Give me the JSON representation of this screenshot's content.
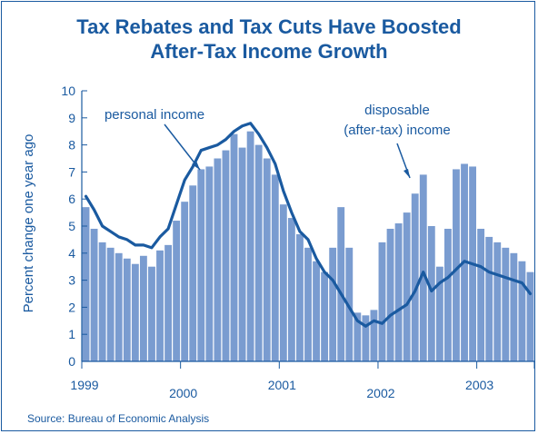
{
  "chart_data": {
    "type": "bar",
    "title": "Tax Rebates and Tax Cuts Have Boosted",
    "subtitle": "After-Tax Income Growth",
    "ylabel": "Percent change one year ago",
    "xlabel": "",
    "ylim": [
      0,
      10
    ],
    "yticks": [
      "0",
      "1",
      "2",
      "3",
      "4",
      "5",
      "6",
      "7",
      "8",
      "9",
      "10"
    ],
    "years": [
      "1999",
      "2000",
      "2001",
      "2002",
      "2003"
    ],
    "period": "monthly, Jan 1999 - Jul 2003",
    "grid": false,
    "colors": {
      "bars": "#7a9cd0",
      "bar_edge": "#ffffff",
      "line": "#1a5aa0",
      "axis": "#1a5aa0",
      "text": "#1a5aa0"
    },
    "series": [
      {
        "name": "disposable (after-tax) income",
        "type": "bar",
        "values": [
          5.7,
          4.9,
          4.4,
          4.2,
          4.0,
          3.8,
          3.6,
          3.9,
          3.5,
          4.1,
          4.3,
          5.2,
          5.9,
          6.5,
          7.1,
          7.2,
          7.5,
          7.8,
          8.4,
          7.9,
          8.5,
          8.0,
          7.5,
          6.9,
          5.8,
          5.3,
          4.7,
          4.2,
          3.7,
          3.3,
          4.2,
          5.7,
          4.2,
          1.8,
          1.7,
          1.9,
          4.4,
          4.9,
          5.1,
          5.5,
          6.2,
          6.9,
          5.0,
          3.5,
          4.9,
          7.1,
          7.3,
          7.2,
          4.9,
          4.6,
          4.4,
          4.2,
          4.0,
          3.7,
          3.3
        ]
      },
      {
        "name": "personal income",
        "type": "line",
        "values": [
          6.1,
          5.6,
          5.0,
          4.8,
          4.6,
          4.5,
          4.3,
          4.3,
          4.2,
          4.6,
          4.9,
          5.8,
          6.7,
          7.2,
          7.8,
          7.9,
          8.0,
          8.2,
          8.5,
          8.7,
          8.8,
          8.4,
          7.9,
          7.3,
          6.3,
          5.5,
          4.8,
          4.5,
          3.8,
          3.3,
          3.0,
          2.5,
          2.0,
          1.5,
          1.3,
          1.5,
          1.4,
          1.7,
          1.9,
          2.1,
          2.6,
          3.3,
          2.6,
          2.9,
          3.1,
          3.4,
          3.7,
          3.6,
          3.5,
          3.3,
          3.2,
          3.1,
          3.0,
          2.9,
          2.5
        ]
      }
    ],
    "annotations": {
      "personal": "personal income",
      "disposable_1": "disposable",
      "disposable_2": "(after-tax) income"
    },
    "source": "Source: Bureau of Economic Analysis"
  }
}
